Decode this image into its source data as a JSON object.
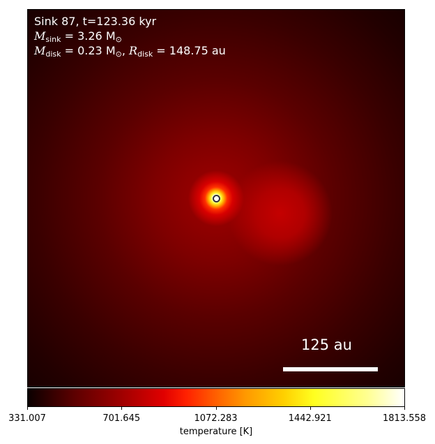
{
  "annotation": {
    "sink_line": "Sink 87, t=123.36 kyr",
    "m_sink_symbol": "M",
    "m_sink_sub": "sink",
    "m_sink_value": " = 3.26 M",
    "m_sink_unit_sub": "⊙",
    "m_disk_symbol": "M",
    "m_disk_sub": "disk",
    "m_disk_value": " = 0.23 M",
    "m_disk_unit_sub": "⊙",
    "separator": ", ",
    "r_disk_symbol": "R",
    "r_disk_sub": "disk",
    "r_disk_value": " = 148.75 au"
  },
  "scalebar": {
    "label": "125 au",
    "color": "#ffffff"
  },
  "colorbar": {
    "label": "temperature [K]",
    "min": 331.007,
    "max": 1813.558,
    "ticks": [
      {
        "label": "331.007",
        "value": 331.007
      },
      {
        "label": "701.645",
        "value": 701.645
      },
      {
        "label": "1072.283",
        "value": 1072.283
      },
      {
        "label": "1442.921",
        "value": 1442.921
      },
      {
        "label": "1813.558",
        "value": 1813.558
      }
    ],
    "colormap": "hot"
  }
}
